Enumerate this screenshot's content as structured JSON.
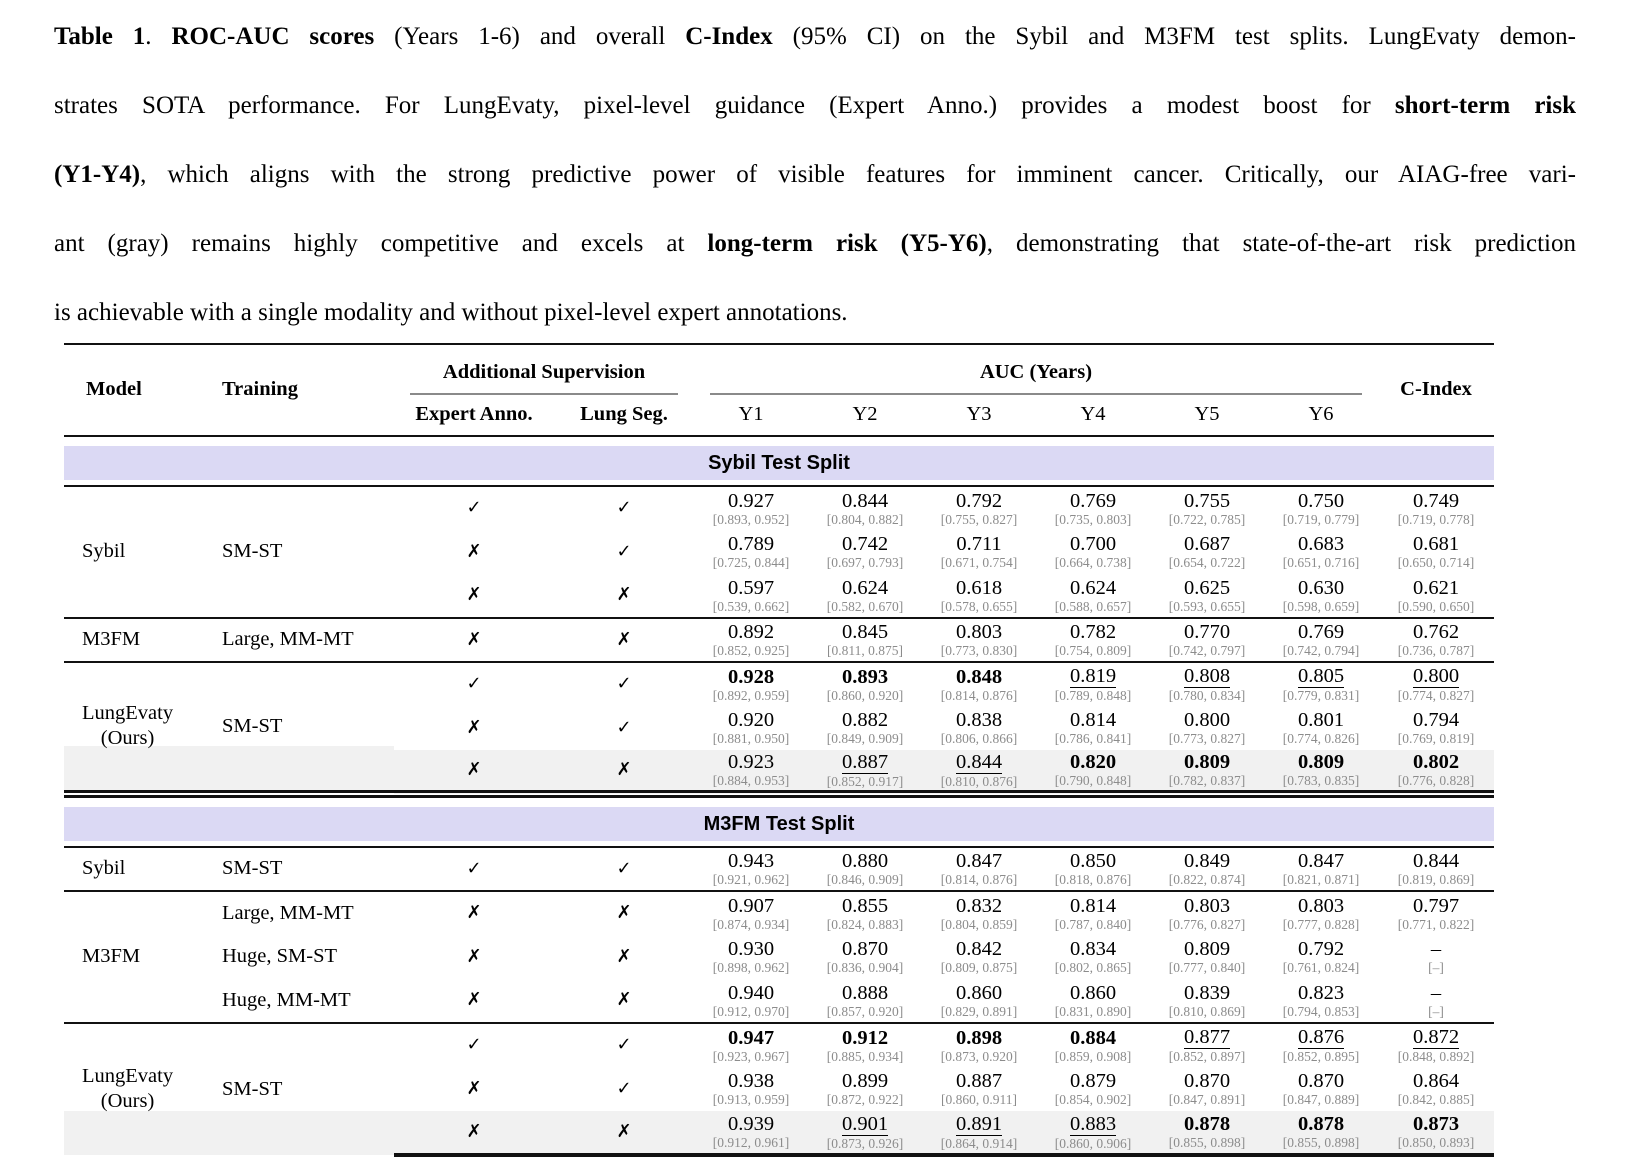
{
  "caption": {
    "lines": [
      {
        "segments": [
          {
            "text": "Table 1",
            "bold": true
          },
          {
            "text": ". ",
            "bold": false
          },
          {
            "text": "ROC-AUC scores",
            "bold": true
          },
          {
            "text": " (Years 1-6) and overall ",
            "bold": false
          },
          {
            "text": "C-Index",
            "bold": true
          },
          {
            "text": " (95% CI) on the Sybil and M3FM test splits. LungEvaty demon-",
            "bold": false
          }
        ]
      },
      {
        "segments": [
          {
            "text": "strates SOTA performance. For LungEvaty, pixel-level guidance (Expert Anno.) provides a modest boost for ",
            "bold": false
          },
          {
            "text": "short-term risk",
            "bold": true
          }
        ]
      },
      {
        "segments": [
          {
            "text": "(Y1-Y4)",
            "bold": true
          },
          {
            "text": ", which aligns with the strong predictive power of visible features for imminent cancer. Critically, our AIAG-free vari-",
            "bold": false
          }
        ]
      },
      {
        "segments": [
          {
            "text": "ant (gray) remains highly competitive and excels at ",
            "bold": false
          },
          {
            "text": "long-term risk (Y5-Y6)",
            "bold": true
          },
          {
            "text": ", demonstrating that state-of-the-art risk prediction",
            "bold": false
          }
        ]
      },
      {
        "segments": [
          {
            "text": "is achievable with a single modality and without pixel-level expert annotations.",
            "bold": false
          }
        ]
      }
    ]
  },
  "icons": {
    "check_icon": "✓",
    "cross_icon": "✗"
  },
  "colors": {
    "band_bg": "#dbd9f4",
    "gray_row_bg": "#f1f1f1",
    "ci_text": "#8c8c8c",
    "rule": "#111111"
  },
  "table": {
    "headers": {
      "model": "Model",
      "training": "Training",
      "additional_supervision": "Additional Supervision",
      "expert_anno": "Expert Anno.",
      "lung_seg": "Lung Seg.",
      "auc_years": "AUC (Years)",
      "years": [
        "Y1",
        "Y2",
        "Y3",
        "Y4",
        "Y5",
        "Y6"
      ],
      "c_index": "C-Index"
    },
    "sections": [
      {
        "title": "Sybil Test Split",
        "groups": [
          {
            "model": "Sybil",
            "training": "SM-ST",
            "rows": [
              {
                "expert": "yes",
                "lung": "yes",
                "gray": false,
                "cells": [
                  [
                    "0.927",
                    "[0.893, 0.952]",
                    "p"
                  ],
                  [
                    "0.844",
                    "[0.804, 0.882]",
                    "p"
                  ],
                  [
                    "0.792",
                    "[0.755, 0.827]",
                    "p"
                  ],
                  [
                    "0.769",
                    "[0.735, 0.803]",
                    "p"
                  ],
                  [
                    "0.755",
                    "[0.722, 0.785]",
                    "p"
                  ],
                  [
                    "0.750",
                    "[0.719, 0.779]",
                    "p"
                  ],
                  [
                    "0.749",
                    "[0.719, 0.778]",
                    "p"
                  ]
                ]
              },
              {
                "expert": "no",
                "lung": "yes",
                "gray": false,
                "cells": [
                  [
                    "0.789",
                    "[0.725, 0.844]",
                    "p"
                  ],
                  [
                    "0.742",
                    "[0.697, 0.793]",
                    "p"
                  ],
                  [
                    "0.711",
                    "[0.671, 0.754]",
                    "p"
                  ],
                  [
                    "0.700",
                    "[0.664, 0.738]",
                    "p"
                  ],
                  [
                    "0.687",
                    "[0.654, 0.722]",
                    "p"
                  ],
                  [
                    "0.683",
                    "[0.651, 0.716]",
                    "p"
                  ],
                  [
                    "0.681",
                    "[0.650, 0.714]",
                    "p"
                  ]
                ]
              },
              {
                "expert": "no",
                "lung": "no",
                "gray": false,
                "cells": [
                  [
                    "0.597",
                    "[0.539, 0.662]",
                    "p"
                  ],
                  [
                    "0.624",
                    "[0.582, 0.670]",
                    "p"
                  ],
                  [
                    "0.618",
                    "[0.578, 0.655]",
                    "p"
                  ],
                  [
                    "0.624",
                    "[0.588, 0.657]",
                    "p"
                  ],
                  [
                    "0.625",
                    "[0.593, 0.655]",
                    "p"
                  ],
                  [
                    "0.630",
                    "[0.598, 0.659]",
                    "p"
                  ],
                  [
                    "0.621",
                    "[0.590, 0.650]",
                    "p"
                  ]
                ]
              }
            ]
          },
          {
            "model": "M3FM",
            "training": "Large, MM-MT",
            "rows": [
              {
                "expert": "no",
                "lung": "no",
                "gray": false,
                "cells": [
                  [
                    "0.892",
                    "[0.852, 0.925]",
                    "p"
                  ],
                  [
                    "0.845",
                    "[0.811, 0.875]",
                    "p"
                  ],
                  [
                    "0.803",
                    "[0.773, 0.830]",
                    "p"
                  ],
                  [
                    "0.782",
                    "[0.754, 0.809]",
                    "p"
                  ],
                  [
                    "0.770",
                    "[0.742, 0.797]",
                    "p"
                  ],
                  [
                    "0.769",
                    "[0.742, 0.794]",
                    "p"
                  ],
                  [
                    "0.762",
                    "[0.736, 0.787]",
                    "p"
                  ]
                ]
              }
            ]
          },
          {
            "model": "LungEvaty\n(Ours)",
            "training": "SM-ST",
            "rows": [
              {
                "expert": "yes",
                "lung": "yes",
                "gray": false,
                "cells": [
                  [
                    "0.928",
                    "[0.892, 0.959]",
                    "b"
                  ],
                  [
                    "0.893",
                    "[0.860, 0.920]",
                    "b"
                  ],
                  [
                    "0.848",
                    "[0.814, 0.876]",
                    "b"
                  ],
                  [
                    "0.819",
                    "[0.789, 0.848]",
                    "u"
                  ],
                  [
                    "0.808",
                    "[0.780, 0.834]",
                    "u"
                  ],
                  [
                    "0.805",
                    "[0.779, 0.831]",
                    "u"
                  ],
                  [
                    "0.800",
                    "[0.774, 0.827]",
                    "u"
                  ]
                ]
              },
              {
                "expert": "no",
                "lung": "yes",
                "gray": false,
                "cells": [
                  [
                    "0.920",
                    "[0.881, 0.950]",
                    "p"
                  ],
                  [
                    "0.882",
                    "[0.849, 0.909]",
                    "p"
                  ],
                  [
                    "0.838",
                    "[0.806, 0.866]",
                    "p"
                  ],
                  [
                    "0.814",
                    "[0.786, 0.841]",
                    "p"
                  ],
                  [
                    "0.800",
                    "[0.773, 0.827]",
                    "p"
                  ],
                  [
                    "0.801",
                    "[0.774, 0.826]",
                    "p"
                  ],
                  [
                    "0.794",
                    "[0.769, 0.819]",
                    "p"
                  ]
                ]
              },
              {
                "expert": "no",
                "lung": "no",
                "gray": true,
                "cells": [
                  [
                    "0.923",
                    "[0.884, 0.953]",
                    "p"
                  ],
                  [
                    "0.887",
                    "[0.852, 0.917]",
                    "u"
                  ],
                  [
                    "0.844",
                    "[0.810, 0.876]",
                    "u"
                  ],
                  [
                    "0.820",
                    "[0.790, 0.848]",
                    "b"
                  ],
                  [
                    "0.809",
                    "[0.782, 0.837]",
                    "b"
                  ],
                  [
                    "0.809",
                    "[0.783, 0.835]",
                    "b"
                  ],
                  [
                    "0.802",
                    "[0.776, 0.828]",
                    "b"
                  ]
                ]
              }
            ]
          }
        ]
      },
      {
        "title": "M3FM Test Split",
        "groups": [
          {
            "model": "Sybil",
            "training": "SM-ST",
            "rows": [
              {
                "expert": "yes",
                "lung": "yes",
                "gray": false,
                "cells": [
                  [
                    "0.943",
                    "[0.921, 0.962]",
                    "p"
                  ],
                  [
                    "0.880",
                    "[0.846, 0.909]",
                    "p"
                  ],
                  [
                    "0.847",
                    "[0.814, 0.876]",
                    "p"
                  ],
                  [
                    "0.850",
                    "[0.818, 0.876]",
                    "p"
                  ],
                  [
                    "0.849",
                    "[0.822, 0.874]",
                    "p"
                  ],
                  [
                    "0.847",
                    "[0.821, 0.871]",
                    "p"
                  ],
                  [
                    "0.844",
                    "[0.819, 0.869]",
                    "p"
                  ]
                ]
              }
            ]
          },
          {
            "model": "M3FM",
            "rows": [
              {
                "training": "Large, MM-MT",
                "expert": "no",
                "lung": "no",
                "gray": false,
                "cells": [
                  [
                    "0.907",
                    "[0.874, 0.934]",
                    "p"
                  ],
                  [
                    "0.855",
                    "[0.824, 0.883]",
                    "p"
                  ],
                  [
                    "0.832",
                    "[0.804, 0.859]",
                    "p"
                  ],
                  [
                    "0.814",
                    "[0.787, 0.840]",
                    "p"
                  ],
                  [
                    "0.803",
                    "[0.776, 0.827]",
                    "p"
                  ],
                  [
                    "0.803",
                    "[0.777, 0.828]",
                    "p"
                  ],
                  [
                    "0.797",
                    "[0.771, 0.822]",
                    "p"
                  ]
                ]
              },
              {
                "training": "Huge, SM-ST",
                "expert": "no",
                "lung": "no",
                "gray": false,
                "cells": [
                  [
                    "0.930",
                    "[0.898, 0.962]",
                    "p"
                  ],
                  [
                    "0.870",
                    "[0.836, 0.904]",
                    "p"
                  ],
                  [
                    "0.842",
                    "[0.809, 0.875]",
                    "p"
                  ],
                  [
                    "0.834",
                    "[0.802, 0.865]",
                    "p"
                  ],
                  [
                    "0.809",
                    "[0.777, 0.840]",
                    "p"
                  ],
                  [
                    "0.792",
                    "[0.761, 0.824]",
                    "p"
                  ],
                  [
                    "–",
                    "[–]",
                    "p"
                  ]
                ]
              },
              {
                "training": "Huge, MM-MT",
                "expert": "no",
                "lung": "no",
                "gray": false,
                "cells": [
                  [
                    "0.940",
                    "[0.912, 0.970]",
                    "p"
                  ],
                  [
                    "0.888",
                    "[0.857, 0.920]",
                    "p"
                  ],
                  [
                    "0.860",
                    "[0.829, 0.891]",
                    "p"
                  ],
                  [
                    "0.860",
                    "[0.831, 0.890]",
                    "p"
                  ],
                  [
                    "0.839",
                    "[0.810, 0.869]",
                    "p"
                  ],
                  [
                    "0.823",
                    "[0.794, 0.853]",
                    "p"
                  ],
                  [
                    "–",
                    "[–]",
                    "p"
                  ]
                ]
              }
            ]
          },
          {
            "model": "LungEvaty\n(Ours)",
            "training": "SM-ST",
            "rows": [
              {
                "expert": "yes",
                "lung": "yes",
                "gray": false,
                "cells": [
                  [
                    "0.947",
                    "[0.923, 0.967]",
                    "b"
                  ],
                  [
                    "0.912",
                    "[0.885, 0.934]",
                    "b"
                  ],
                  [
                    "0.898",
                    "[0.873, 0.920]",
                    "b"
                  ],
                  [
                    "0.884",
                    "[0.859, 0.908]",
                    "b"
                  ],
                  [
                    "0.877",
                    "[0.852, 0.897]",
                    "u"
                  ],
                  [
                    "0.876",
                    "[0.852, 0.895]",
                    "u"
                  ],
                  [
                    "0.872",
                    "[0.848, 0.892]",
                    "u"
                  ]
                ]
              },
              {
                "expert": "no",
                "lung": "yes",
                "gray": false,
                "cells": [
                  [
                    "0.938",
                    "[0.913, 0.959]",
                    "p"
                  ],
                  [
                    "0.899",
                    "[0.872, 0.922]",
                    "p"
                  ],
                  [
                    "0.887",
                    "[0.860, 0.911]",
                    "p"
                  ],
                  [
                    "0.879",
                    "[0.854, 0.902]",
                    "p"
                  ],
                  [
                    "0.870",
                    "[0.847, 0.891]",
                    "p"
                  ],
                  [
                    "0.870",
                    "[0.847, 0.889]",
                    "p"
                  ],
                  [
                    "0.864",
                    "[0.842, 0.885]",
                    "p"
                  ]
                ]
              },
              {
                "expert": "no",
                "lung": "no",
                "gray": true,
                "cells": [
                  [
                    "0.939",
                    "[0.912, 0.961]",
                    "p"
                  ],
                  [
                    "0.901",
                    "[0.873, 0.926]",
                    "u"
                  ],
                  [
                    "0.891",
                    "[0.864, 0.914]",
                    "u"
                  ],
                  [
                    "0.883",
                    "[0.860, 0.906]",
                    "u"
                  ],
                  [
                    "0.878",
                    "[0.855, 0.898]",
                    "b"
                  ],
                  [
                    "0.878",
                    "[0.855, 0.898]",
                    "b"
                  ],
                  [
                    "0.873",
                    "[0.850, 0.893]",
                    "b"
                  ]
                ]
              }
            ]
          }
        ]
      }
    ]
  }
}
